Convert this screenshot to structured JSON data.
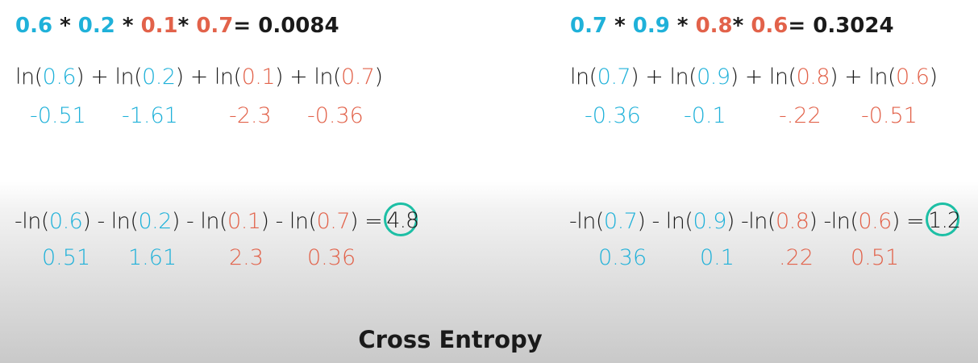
{
  "left": {
    "product": {
      "a": "0.6",
      "b": "0.2",
      "c": "0.1",
      "d": "0.7",
      "star": "*",
      "result": "= 0.0084"
    },
    "log_sum": {
      "ln": "ln(",
      "close": ")",
      "plus": " + ",
      "a": "0.6",
      "b": "0.2",
      "c": "0.1",
      "d": "0.7"
    },
    "log_values": [
      "-0.51",
      "-1.61",
      "-2.3",
      "-0.36"
    ],
    "neg_sum": {
      "neg_ln": "-ln(",
      "minus_ln": " - ln(",
      "close": ")",
      "a": "0.6",
      "b": "0.2",
      "c": "0.1",
      "d": "0.7",
      "equals": "  =",
      "result": "4.8"
    },
    "neg_values": [
      "0.51",
      "1.61",
      "2.3",
      "0.36"
    ]
  },
  "right": {
    "product": {
      "a": "0.7",
      "b": "0.9",
      "c": "0.8",
      "d": "0.6",
      "star": "*",
      "result": "= 0.3024"
    },
    "log_sum": {
      "ln": "ln(",
      "close": ")",
      "plus": " + ",
      "a": "0.7",
      "b": "0.9",
      "c": "0.8",
      "d": "0.6"
    },
    "log_values": [
      "-0.36",
      "-0.1",
      "-.22",
      "-0.51"
    ],
    "neg_sum": {
      "neg_ln": "-ln(",
      "minus_ln": " - ln(",
      "minus_ln_tight": " -ln(",
      "close": ")",
      "a": "0.7",
      "b": "0.9",
      "c": "0.8",
      "d": "0.6",
      "equals": " =",
      "result": "1.2"
    },
    "neg_values": [
      "0.36",
      "0.1",
      ".22",
      "0.51"
    ]
  },
  "colors": {
    "blue": "#1fb1d9",
    "red": "#e2624a",
    "circle": "#1dbfa5"
  },
  "title": "Cross Entropy"
}
